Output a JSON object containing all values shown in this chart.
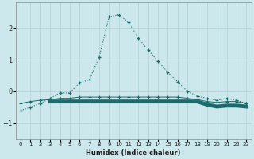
{
  "xlabel": "Humidex (Indice chaleur)",
  "xlim": [
    -0.5,
    23.5
  ],
  "ylim": [
    -1.5,
    2.8
  ],
  "yticks": [
    -1,
    0,
    1,
    2
  ],
  "xticks": [
    0,
    1,
    2,
    3,
    4,
    5,
    6,
    7,
    8,
    9,
    10,
    11,
    12,
    13,
    14,
    15,
    16,
    17,
    18,
    19,
    20,
    21,
    22,
    23
  ],
  "bg_color": "#cce8ec",
  "grid_color": "#b0d0d4",
  "line_color": "#1a6b6b",
  "curve1_x": [
    0,
    1,
    2,
    3,
    4,
    5,
    6,
    7,
    8,
    9,
    10,
    11,
    12,
    13,
    14,
    15,
    16,
    17,
    18,
    19,
    20,
    21,
    22,
    23
  ],
  "curve1_y": [
    -0.6,
    -0.5,
    -0.38,
    -0.22,
    -0.05,
    -0.05,
    0.27,
    0.37,
    1.08,
    2.35,
    2.42,
    2.18,
    1.68,
    1.3,
    0.95,
    0.6,
    0.3,
    0.0,
    -0.15,
    -0.22,
    -0.28,
    -0.22,
    -0.28,
    -0.38
  ],
  "curve2_x": [
    0,
    1,
    2,
    3,
    4,
    5,
    6,
    7,
    8,
    9,
    10,
    11,
    12,
    13,
    14,
    15,
    16,
    17,
    18,
    19,
    20,
    21,
    22,
    23
  ],
  "curve2_y": [
    -0.38,
    -0.32,
    -0.28,
    -0.26,
    -0.22,
    -0.22,
    -0.18,
    -0.18,
    -0.18,
    -0.18,
    -0.18,
    -0.18,
    -0.18,
    -0.18,
    -0.18,
    -0.18,
    -0.18,
    -0.22,
    -0.26,
    -0.32,
    -0.35,
    -0.32,
    -0.32,
    -0.38
  ],
  "curve3_x": [
    3,
    4,
    5,
    6,
    7,
    8,
    9,
    10,
    11,
    12,
    13,
    14,
    15,
    16,
    17,
    18,
    19,
    20,
    21,
    22,
    23
  ],
  "curve3_y": [
    -0.32,
    -0.32,
    -0.32,
    -0.32,
    -0.32,
    -0.32,
    -0.32,
    -0.32,
    -0.32,
    -0.32,
    -0.32,
    -0.32,
    -0.32,
    -0.32,
    -0.32,
    -0.32,
    -0.42,
    -0.48,
    -0.45,
    -0.45,
    -0.48
  ]
}
